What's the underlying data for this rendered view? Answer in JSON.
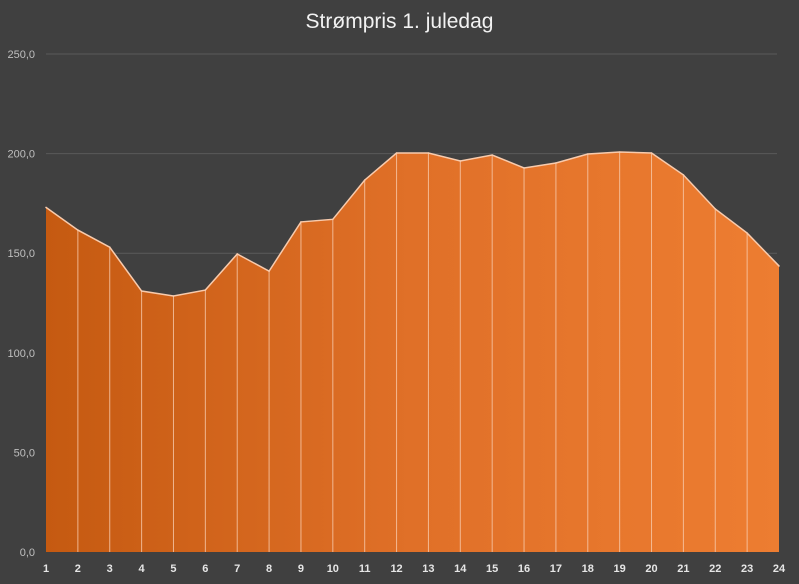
{
  "chart_data": {
    "type": "area",
    "title": "Strømpris 1. juledag",
    "xlabel": "",
    "ylabel": "",
    "categories": [
      "1",
      "2",
      "3",
      "4",
      "5",
      "6",
      "7",
      "8",
      "9",
      "10",
      "11",
      "12",
      "13",
      "14",
      "15",
      "16",
      "17",
      "18",
      "19",
      "20",
      "21",
      "22",
      "23",
      "24"
    ],
    "values": [
      173.0,
      161.6,
      153.0,
      131.0,
      128.5,
      131.5,
      149.6,
      141.0,
      165.7,
      167.0,
      186.7,
      200.3,
      200.3,
      196.3,
      199.3,
      192.8,
      195.3,
      199.8,
      200.8,
      200.3,
      189.3,
      172.2,
      160.1,
      143.6
    ],
    "ylim": [
      0,
      250
    ],
    "yticks": [
      "0,0",
      "50,0",
      "100,0",
      "150,0",
      "200,0",
      "250,0"
    ],
    "grid": true,
    "colors": {
      "fill_start": "#c55a11",
      "fill_end": "#ed7d31",
      "line": "#f8cbad",
      "background": "#404040"
    }
  }
}
